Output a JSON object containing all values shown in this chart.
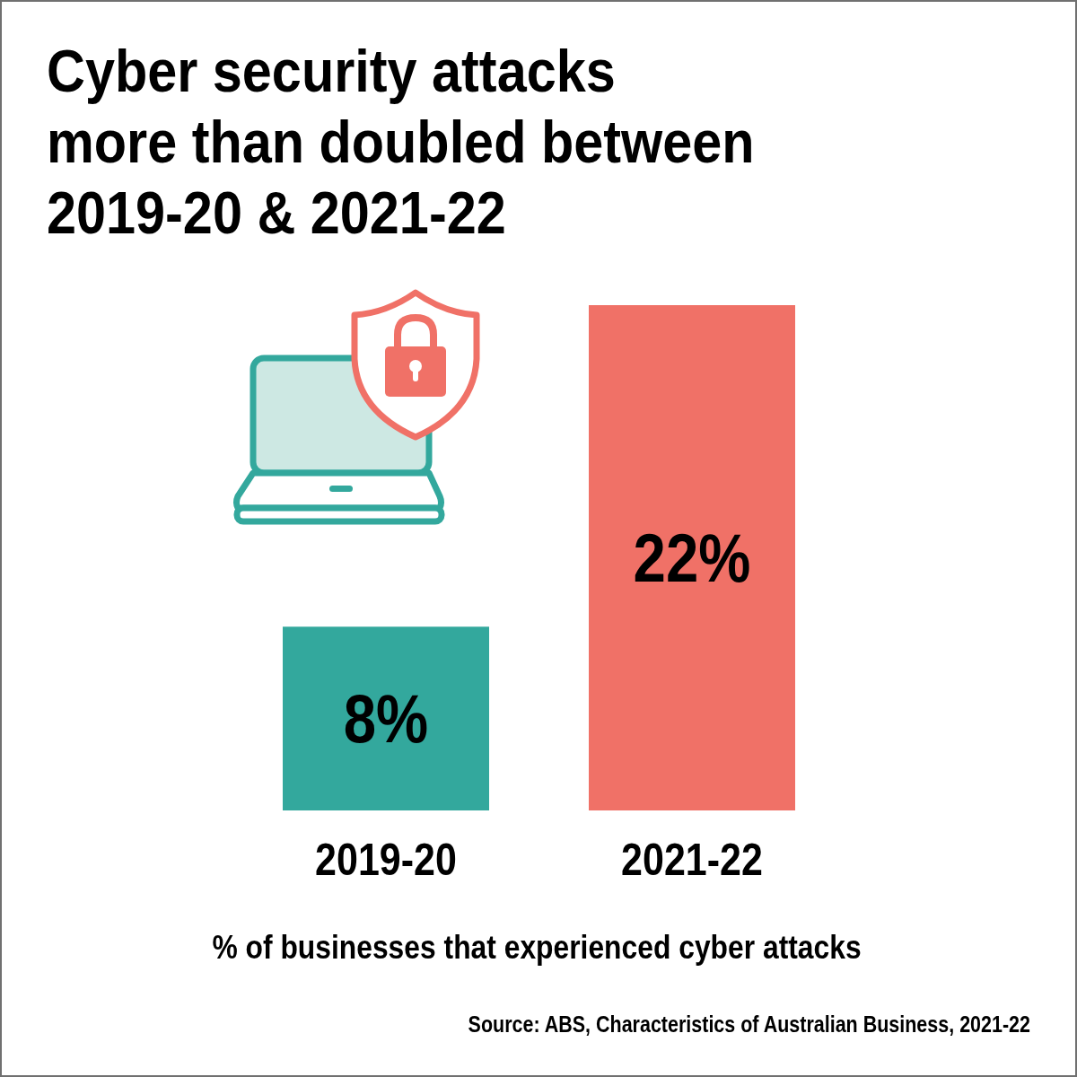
{
  "chart_data": {
    "type": "bar",
    "title": "Cyber security attacks\nmore than doubled between\n2019-20 & 2021-22",
    "categories": [
      "2019-20",
      "2021-22"
    ],
    "values": [
      8,
      22
    ],
    "colors": [
      "#33a89d",
      "#f07167"
    ],
    "value_labels": [
      "8%",
      "22%"
    ],
    "xlabel": "% of businesses that experienced cyber attacks",
    "annotations": [
      "Source: ABS, Characteristics of Australian Business, 2021-22"
    ]
  }
}
